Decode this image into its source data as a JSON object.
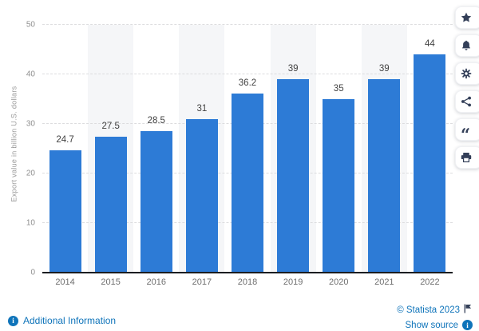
{
  "chart_data": {
    "type": "bar",
    "categories": [
      "2014",
      "2015",
      "2016",
      "2017",
      "2018",
      "2019",
      "2020",
      "2021",
      "2022"
    ],
    "values": [
      24.7,
      27.5,
      28.5,
      31,
      36.2,
      39,
      35,
      39,
      44
    ],
    "value_labels": [
      "24.7",
      "27.5",
      "28.5",
      "31",
      "36.2",
      "39",
      "35",
      "39",
      "44"
    ],
    "title": "",
    "xlabel": "",
    "ylabel": "Export value in billion U.S. dollars",
    "ylim": [
      0,
      50
    ],
    "yticks": [
      0,
      10,
      20,
      30,
      40,
      50
    ],
    "grid": true,
    "legend": false,
    "bar_color": "#2d7bd6",
    "stripe_color": "#f5f6f8"
  },
  "toolbar": {
    "buttons": [
      {
        "name": "favorite",
        "icon": "star-icon"
      },
      {
        "name": "notifications",
        "icon": "bell-icon"
      },
      {
        "name": "settings",
        "icon": "gear-icon"
      },
      {
        "name": "share",
        "icon": "share-icon"
      },
      {
        "name": "cite",
        "icon": "quote-icon"
      },
      {
        "name": "print",
        "icon": "printer-icon"
      }
    ]
  },
  "footer": {
    "additional_information": "Additional Information",
    "copyright": "© Statista 2023",
    "show_source": "Show source"
  },
  "colors": {
    "link_blue": "#0f74ba",
    "icon_navy": "#333f58",
    "bar_blue": "#2d7bd6",
    "axis_black": "#1b1d21"
  }
}
